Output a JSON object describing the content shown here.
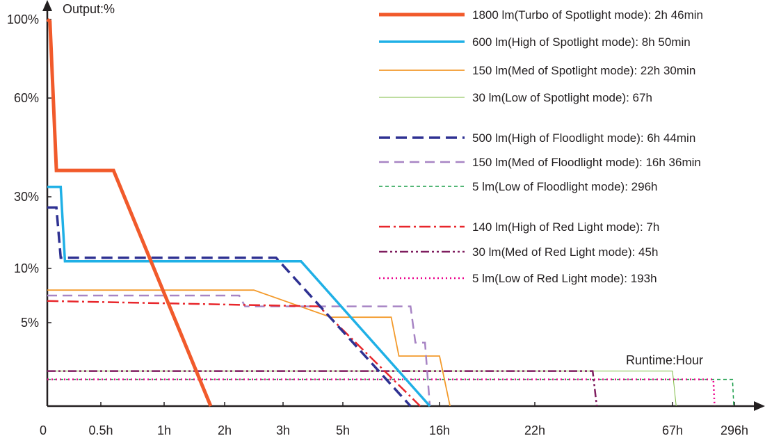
{
  "chart_data": {
    "type": "line",
    "title": "",
    "ylabel": "Output:%",
    "xlabel": "Runtime:Hour",
    "x_ticks": [
      "0",
      "0.5h",
      "1h",
      "2h",
      "3h",
      "5h",
      "16h",
      "22h",
      "67h",
      "296h"
    ],
    "y_ticks": [
      "5%",
      "10%",
      "30%",
      "60%",
      "100%"
    ],
    "x_scale": "non-linear (categorical ticks)",
    "legend_position": "top-right",
    "series": [
      {
        "name": "1800 lm(Turbo of Spotlight mode): 2h 46min",
        "color": "#f15a2b",
        "style": "solid-thick",
        "points": [
          [
            0,
            100
          ],
          [
            0.05,
            99
          ],
          [
            0.17,
            38
          ],
          [
            1.2,
            38
          ],
          [
            2.77,
            0
          ]
        ]
      },
      {
        "name": "600 lm(High of Spotlight mode): 8h 50min",
        "color": "#1fb0e6",
        "style": "solid-medium",
        "points": [
          [
            0,
            33
          ],
          [
            0.25,
            33
          ],
          [
            0.33,
            12
          ],
          [
            4.3,
            12
          ],
          [
            5.9,
            0
          ]
        ]
      },
      {
        "name": "150 lm(Med of Spotlight mode): 22h 30min",
        "color": "#f39a2b",
        "style": "solid-thin",
        "points": [
          [
            0,
            8
          ],
          [
            3.5,
            8
          ],
          [
            4.8,
            5.5
          ],
          [
            5.5,
            5.5
          ],
          [
            5.58,
            3
          ],
          [
            6,
            3
          ],
          [
            6.11,
            0
          ]
        ]
      },
      {
        "name": "30 lm(Low of Spotlight mode): 67h",
        "color": "#7dbb42",
        "style": "solid-hairline",
        "points": [
          [
            0,
            2.1
          ],
          [
            8,
            2.1
          ],
          [
            8.06,
            0
          ]
        ]
      },
      {
        "name": "500 lm(High of Floodlight mode): 6h 44min",
        "color": "#2e3192",
        "style": "dash-long",
        "points": [
          [
            0,
            27
          ],
          [
            0.17,
            27
          ],
          [
            0.25,
            13
          ],
          [
            3.88,
            13
          ],
          [
            5.7,
            0
          ]
        ]
      },
      {
        "name": "150 lm(Med of Floodlight mode): 16h 36min",
        "color": "#a784c4",
        "style": "dash-medium",
        "points": [
          [
            0,
            7.5
          ],
          [
            3.25,
            7.5
          ],
          [
            3.35,
            6.5
          ],
          [
            5.7,
            6.5
          ],
          [
            5.75,
            3.8
          ],
          [
            5.85,
            3.8
          ],
          [
            5.9,
            0
          ]
        ]
      },
      {
        "name": "5 lm(Low of Floodlight mode): 296h",
        "color": "#1a9d49",
        "style": "dash-short",
        "points": [
          [
            0,
            1.6
          ],
          [
            8.97,
            1.6
          ],
          [
            8.99,
            0
          ]
        ]
      },
      {
        "name": "140 lm(High of Red Light mode): 7h",
        "color": "#e8262b",
        "style": "dash-dot",
        "points": [
          [
            0,
            7
          ],
          [
            4.6,
            6.5
          ],
          [
            5.8,
            0
          ]
        ]
      },
      {
        "name": "30 lm(Med of Red Light mode): 45h",
        "color": "#7f1d5f",
        "style": "dash-dot-dot",
        "points": [
          [
            0,
            2.1
          ],
          [
            7.42,
            2.1
          ],
          [
            7.45,
            0
          ]
        ]
      },
      {
        "name": "5 lm(Low of Red Light mode): 193h",
        "color": "#ec008c",
        "style": "dotted",
        "points": [
          [
            0,
            1.6
          ],
          [
            8.66,
            1.6
          ],
          [
            8.68,
            0
          ]
        ]
      }
    ]
  }
}
